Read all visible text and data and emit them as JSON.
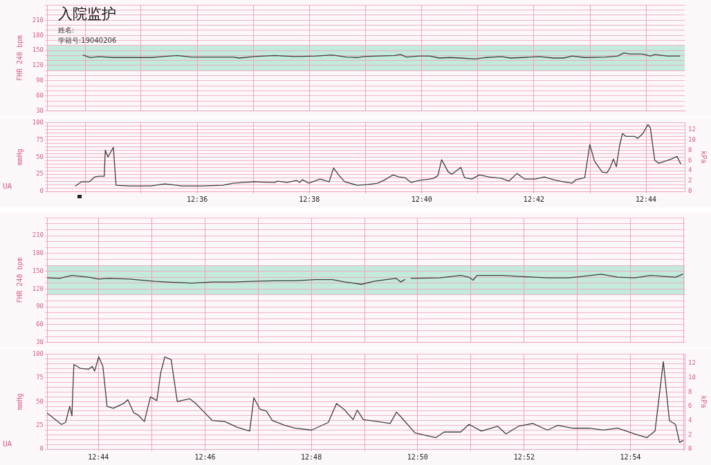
{
  "chart_data": [
    {
      "type": "line",
      "title": "入院监护",
      "annotations": [
        "姓名:",
        "学籍号:19040206"
      ],
      "ylabel": "FHR 240 bpm",
      "tick_labels": "y",
      "grid": true,
      "marker": "none",
      "color": "#3d3d3d",
      "x": [
        12.5661,
        12.5683,
        12.5707,
        12.5751,
        12.5799,
        12.5862,
        12.5899,
        12.5941,
        12.5983,
        12.6046,
        12.6107,
        12.6125,
        12.6168,
        12.623,
        12.6291,
        12.6352,
        12.6401,
        12.6444,
        12.6475,
        12.6494,
        12.6536,
        12.6586,
        12.6604,
        12.6622,
        12.6659,
        12.6691,
        12.672,
        12.6751,
        12.6783,
        12.6825,
        12.6856,
        12.6904,
        12.693,
        12.6967,
        12.7015,
        12.7059,
        12.7088,
        12.7114,
        12.7151,
        12.7212,
        12.7249,
        12.7267,
        12.7285,
        12.7322,
        12.7346,
        12.7359,
        12.7396,
        12.7433
      ],
      "values": [
        141,
        136,
        138,
        136,
        136,
        136,
        138,
        140,
        137,
        137,
        137,
        135,
        138,
        140,
        138,
        139,
        141,
        137,
        136,
        138,
        139,
        140,
        142,
        137,
        139,
        139,
        135,
        136,
        135,
        133,
        136,
        138,
        135,
        136,
        138,
        135,
        135,
        139,
        136,
        137,
        139,
        145,
        143,
        143,
        139,
        142,
        139,
        139
      ],
      "xlim": [
        12.5554,
        12.7448
      ],
      "xticks": [
        {
          "value": 12.5667,
          "label": null
        },
        {
          "value": 12.5833,
          "label": null
        },
        {
          "value": 12.6,
          "label": null
        },
        {
          "value": 12.6167,
          "label": null
        },
        {
          "value": 12.6333,
          "label": null
        },
        {
          "value": 12.65,
          "label": null
        },
        {
          "value": 12.6667,
          "label": null
        },
        {
          "value": 12.6833,
          "label": null
        },
        {
          "value": 12.7,
          "label": null
        },
        {
          "value": 12.7167,
          "label": null
        },
        {
          "value": 12.7333,
          "label": null
        }
      ],
      "ylim": [
        30,
        240
      ],
      "yticks": [
        30,
        {
          "value": 40,
          "label": null
        },
        {
          "value": 50,
          "label": null
        },
        60,
        {
          "value": 70,
          "label": null
        },
        {
          "value": 80,
          "label": null
        },
        90,
        {
          "value": 100,
          "label": null
        },
        {
          "value": 110,
          "label": null
        },
        120,
        {
          "value": 130,
          "label": null
        },
        {
          "value": 140,
          "label": null
        },
        150,
        {
          "value": 160,
          "label": null
        },
        {
          "value": 170,
          "label": null
        },
        180,
        {
          "value": 190,
          "label": null
        },
        {
          "value": 200,
          "label": null
        },
        210,
        {
          "value": 220,
          "label": null
        },
        {
          "value": 230,
          "label": null
        },
        {
          "value": 240,
          "label": null
        }
      ],
      "bands": [
        {
          "axis": "y",
          "from": 110,
          "to": 160,
          "color": "#c4eadb"
        }
      ]
    },
    {
      "type": "line",
      "title": "UA",
      "ylabel": "mmHg",
      "y2label": "kPa",
      "grid": true,
      "marker": "none",
      "color": "#3d3d3d",
      "x": [
        12.5639,
        12.5656,
        12.568,
        12.5696,
        12.5707,
        12.5724,
        12.5727,
        12.5735,
        12.5751,
        12.5759,
        12.5799,
        12.5862,
        12.5904,
        12.5954,
        12.6015,
        12.6076,
        12.6107,
        12.6168,
        12.623,
        12.6239,
        12.6267,
        12.6295,
        12.6304,
        12.6313,
        12.6331,
        12.6365,
        12.6392,
        12.6405,
        12.642,
        12.6438,
        12.6475,
        12.6506,
        12.6536,
        12.6554,
        12.6582,
        12.6599,
        12.6617,
        12.6635,
        12.6659,
        12.6691,
        12.6702,
        12.6715,
        12.6726,
        12.6746,
        12.6757,
        12.6783,
        12.6794,
        12.6816,
        12.6838,
        12.6867,
        12.6904,
        12.6926,
        12.695,
        12.6972,
        12.7004,
        12.7031,
        12.7059,
        12.7088,
        12.7114,
        12.7125,
        12.7151,
        12.7166,
        12.718,
        12.7203,
        12.7217,
        12.7227,
        12.7236,
        12.7245,
        12.7254,
        12.7263,
        12.7273,
        12.7298,
        12.7308,
        12.7322,
        12.7339,
        12.7346,
        12.7359,
        12.7372,
        12.7409,
        12.7425,
        12.7436
      ],
      "values": [
        8,
        14,
        14,
        21,
        22,
        22,
        60,
        50,
        64,
        9,
        8,
        8,
        11,
        8,
        8,
        9,
        12,
        14,
        13,
        15,
        13,
        16,
        13,
        17,
        12,
        18,
        14,
        34,
        24,
        14,
        9,
        10,
        12,
        16,
        24,
        21,
        20,
        13,
        16,
        18,
        19,
        23,
        46,
        28,
        25,
        35,
        20,
        18,
        24,
        21,
        19,
        15,
        26,
        18,
        18,
        21,
        17,
        14,
        12,
        17,
        20,
        68,
        44,
        28,
        27,
        35,
        47,
        36,
        65,
        84,
        80,
        80,
        77,
        83,
        97,
        92,
        45,
        41,
        47,
        51,
        40
      ],
      "xlim": [
        12.5554,
        12.7448
      ],
      "xticks": [
        {
          "value": 12.5667,
          "label": null
        },
        {
          "value": 12.5833,
          "label": null
        },
        {
          "value": 12.6,
          "label": "12:36"
        },
        {
          "value": 12.6167,
          "label": null
        },
        {
          "value": 12.6333,
          "label": "12:38"
        },
        {
          "value": 12.65,
          "label": null
        },
        {
          "value": 12.6667,
          "label": "12:40"
        },
        {
          "value": 12.6833,
          "label": null
        },
        {
          "value": 12.7,
          "label": "12:42"
        },
        {
          "value": 12.7167,
          "label": null
        },
        {
          "value": 12.7333,
          "label": "12:44"
        }
      ],
      "ylim": [
        0,
        100
      ],
      "yticks": [
        0,
        {
          "value": 5,
          "label": null
        },
        {
          "value": 10,
          "label": null
        },
        {
          "value": 15,
          "label": null
        },
        {
          "value": 20,
          "label": null
        },
        25,
        {
          "value": 30,
          "label": null
        },
        {
          "value": 35,
          "label": null
        },
        {
          "value": 40,
          "label": null
        },
        {
          "value": 45,
          "label": null
        },
        50,
        {
          "value": 55,
          "label": null
        },
        {
          "value": 60,
          "label": null
        },
        {
          "value": 65,
          "label": null
        },
        {
          "value": 70,
          "label": null
        },
        75,
        {
          "value": 80,
          "label": null
        },
        {
          "value": 85,
          "label": null
        },
        {
          "value": 90,
          "label": null
        },
        {
          "value": 95,
          "label": null
        },
        100
      ],
      "y2lim": [
        0,
        13.33
      ],
      "y2ticks": [
        0,
        2,
        4,
        6,
        8,
        10,
        12
      ]
    },
    {
      "type": "line",
      "ylabel": "FHR 240 bpm",
      "tick_labels": "y",
      "grid": true,
      "marker": "none",
      "color": "#3d3d3d",
      "x": [
        12.7172,
        12.7211,
        12.725,
        12.7302,
        12.7333,
        12.7366,
        12.743,
        12.7508,
        12.7586,
        12.7625,
        12.7691,
        12.7755,
        12.7819,
        12.7885,
        12.7949,
        12.8014,
        12.8066,
        12.8105,
        12.8157,
        12.8196,
        12.8235,
        12.8266,
        12.828,
        12.8293,
        12.8301,
        12.8313,
        12.8402,
        12.8468,
        12.8494,
        12.8507,
        12.8519,
        12.8597,
        12.8663,
        12.8741,
        12.8805,
        12.8844,
        12.8908,
        12.896,
        12.9013,
        12.9063,
        12.9116,
        12.9141,
        12.9164
      ],
      "values": [
        139,
        138,
        143,
        140,
        137,
        138,
        137,
        133,
        131,
        130,
        132,
        132,
        133,
        134,
        134,
        136,
        136,
        132,
        128,
        133,
        136,
        138,
        132,
        136,
        null,
        138,
        139,
        143,
        140,
        135,
        143,
        143,
        141,
        139,
        139,
        141,
        145,
        140,
        139,
        143,
        141,
        140,
        145
      ],
      "xlim": [
        12.7172,
        12.917
      ],
      "xticks": [
        {
          "value": 12.7333,
          "label": null
        },
        {
          "value": 12.75,
          "label": null
        },
        {
          "value": 12.7667,
          "label": null
        },
        {
          "value": 12.7833,
          "label": null
        },
        {
          "value": 12.8,
          "label": null
        },
        {
          "value": 12.8167,
          "label": null
        },
        {
          "value": 12.8333,
          "label": null
        },
        {
          "value": 12.85,
          "label": null
        },
        {
          "value": 12.8667,
          "label": null
        },
        {
          "value": 12.8833,
          "label": null
        },
        {
          "value": 12.9,
          "label": null
        },
        {
          "value": 12.9167,
          "label": null
        }
      ],
      "ylim": [
        30,
        240
      ],
      "yticks": [
        30,
        {
          "value": 40,
          "label": null
        },
        {
          "value": 50,
          "label": null
        },
        60,
        {
          "value": 70,
          "label": null
        },
        {
          "value": 80,
          "label": null
        },
        90,
        {
          "value": 100,
          "label": null
        },
        {
          "value": 110,
          "label": null
        },
        120,
        {
          "value": 130,
          "label": null
        },
        {
          "value": 140,
          "label": null
        },
        150,
        {
          "value": 160,
          "label": null
        },
        {
          "value": 170,
          "label": null
        },
        180,
        {
          "value": 190,
          "label": null
        },
        {
          "value": 200,
          "label": null
        },
        210,
        {
          "value": 220,
          "label": null
        },
        {
          "value": 230,
          "label": null
        },
        {
          "value": 240,
          "label": null
        }
      ],
      "bands": [
        {
          "axis": "y",
          "from": 110,
          "to": 160,
          "color": "#c4eadb"
        }
      ]
    },
    {
      "type": "line",
      "title": "UA",
      "ylabel": "mmHg",
      "y2label": "kPa",
      "grid": true,
      "marker": "none",
      "color": "#3d3d3d",
      "x": [
        12.7172,
        12.7198,
        12.7217,
        12.723,
        12.7243,
        12.725,
        12.7256,
        12.7276,
        12.7302,
        12.7314,
        12.7321,
        12.7334,
        12.7347,
        12.736,
        12.738,
        12.7412,
        12.7425,
        12.7444,
        12.7457,
        12.7477,
        12.7496,
        12.7516,
        12.7528,
        12.7541,
        12.7561,
        12.758,
        12.7619,
        12.7638,
        12.7664,
        12.769,
        12.7729,
        12.7768,
        12.7807,
        12.782,
        12.7839,
        12.7859,
        12.7878,
        12.7917,
        12.7949,
        12.8001,
        12.8053,
        12.8079,
        12.8105,
        12.8131,
        12.8144,
        12.8163,
        12.8209,
        12.8247,
        12.8267,
        12.8286,
        12.8325,
        12.839,
        12.8416,
        12.8468,
        12.8494,
        12.8533,
        12.8584,
        12.861,
        12.8649,
        12.8694,
        12.874,
        12.8772,
        12.8818,
        12.8869,
        12.8915,
        12.896,
        12.9012,
        12.9051,
        12.9077,
        12.9103,
        12.9122,
        12.9141,
        12.9154,
        12.9164
      ],
      "values": [
        38,
        31,
        26,
        28,
        45,
        35,
        89,
        85,
        84,
        87,
        82,
        97,
        87,
        45,
        43,
        48,
        52,
        38,
        36,
        29,
        55,
        51,
        80,
        97,
        94,
        50,
        53,
        48,
        39,
        30,
        29,
        23,
        19,
        54,
        42,
        40,
        30,
        25,
        22,
        20,
        28,
        48,
        41,
        31,
        41,
        31,
        29,
        27,
        39,
        32,
        17,
        12,
        18,
        18,
        26,
        19,
        24,
        16,
        24,
        27,
        20,
        25,
        22,
        22,
        20,
        22,
        16,
        12,
        19,
        92,
        30,
        26,
        7,
        9
      ],
      "xlim": [
        12.7172,
        12.917
      ],
      "xticks": [
        {
          "value": 12.7333,
          "label": "12:44"
        },
        {
          "value": 12.75,
          "label": null
        },
        {
          "value": 12.7667,
          "label": "12:46"
        },
        {
          "value": 12.7833,
          "label": null
        },
        {
          "value": 12.8,
          "label": "12:48"
        },
        {
          "value": 12.8167,
          "label": null
        },
        {
          "value": 12.8333,
          "label": "12:50"
        },
        {
          "value": 12.85,
          "label": null
        },
        {
          "value": 12.8667,
          "label": "12:52"
        },
        {
          "value": 12.8833,
          "label": null
        },
        {
          "value": 12.9,
          "label": "12:54"
        },
        {
          "value": 12.9167,
          "label": null
        }
      ],
      "ylim": [
        0,
        100
      ],
      "yticks": [
        0,
        {
          "value": 5,
          "label": null
        },
        {
          "value": 10,
          "label": null
        },
        {
          "value": 15,
          "label": null
        },
        {
          "value": 20,
          "label": null
        },
        25,
        {
          "value": 30,
          "label": null
        },
        {
          "value": 35,
          "label": null
        },
        {
          "value": 40,
          "label": null
        },
        {
          "value": 45,
          "label": null
        },
        50,
        {
          "value": 55,
          "label": null
        },
        {
          "value": 60,
          "label": null
        },
        {
          "value": 65,
          "label": null
        },
        {
          "value": 70,
          "label": null
        },
        75,
        {
          "value": 80,
          "label": null
        },
        {
          "value": 85,
          "label": null
        },
        {
          "value": 90,
          "label": null
        },
        {
          "value": 95,
          "label": null
        },
        100
      ],
      "y2lim": [
        0,
        13.33
      ],
      "y2ticks": [
        0,
        2,
        4,
        6,
        8,
        10,
        12
      ]
    }
  ]
}
